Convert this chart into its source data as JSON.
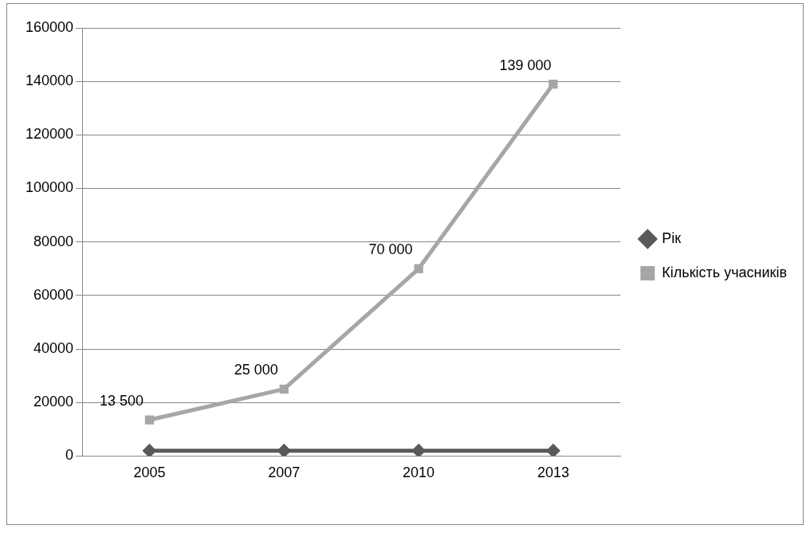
{
  "chart_data": {
    "type": "line",
    "categories": [
      "2005",
      "2007",
      "2010",
      "2013"
    ],
    "series": [
      {
        "name": "Рік",
        "color": "#595959",
        "marker": "diamond",
        "values": [
          2005,
          2007,
          2010,
          2013
        ]
      },
      {
        "name": "Кількість учасників",
        "color": "#a6a6a6",
        "marker": "square",
        "values": [
          13500,
          25000,
          70000,
          139000
        ],
        "value_labels": [
          "13 500",
          "25 000",
          "70 000",
          "139 000"
        ]
      }
    ],
    "ylim": [
      0,
      160000
    ],
    "yticks": [
      0,
      20000,
      40000,
      60000,
      80000,
      100000,
      120000,
      140000,
      160000
    ],
    "grid": "y",
    "legend": "right",
    "line_style": "solid"
  }
}
